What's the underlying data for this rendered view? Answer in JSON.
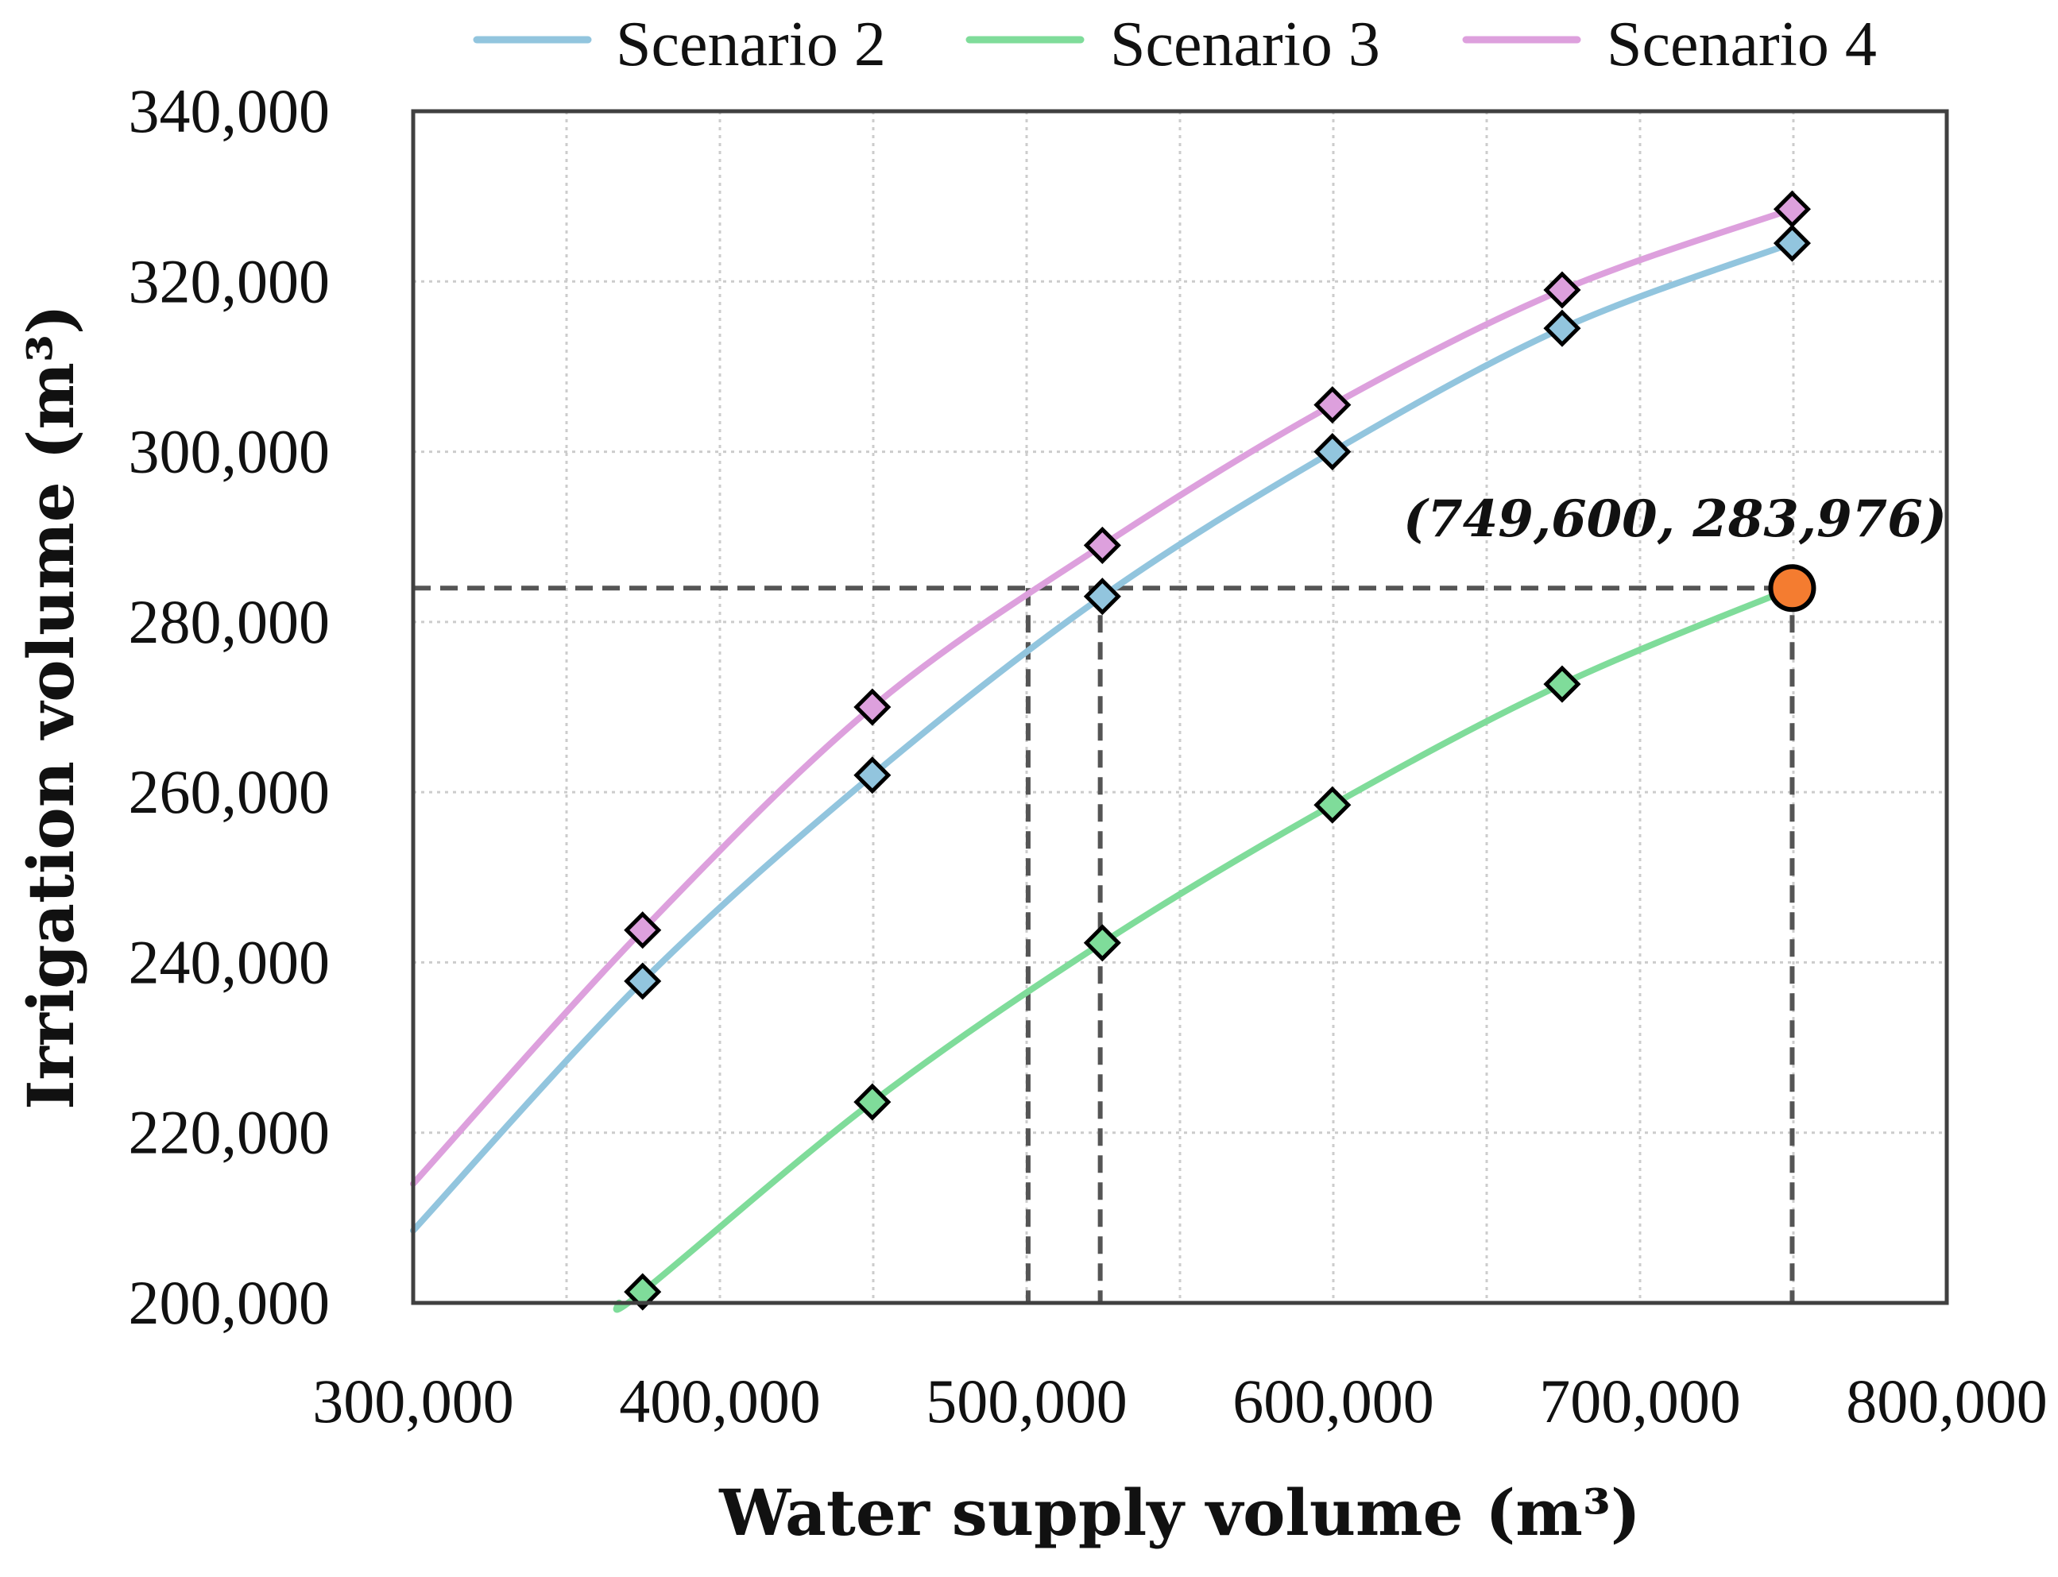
{
  "chart_data": {
    "type": "line",
    "title": "",
    "xlabel": "Water supply volume (m³)",
    "ylabel": "Irrigation volume (m³)",
    "xlim": [
      300000,
      800000
    ],
    "ylim": [
      200000,
      340000
    ],
    "x_ticks": [
      300000,
      400000,
      500000,
      600000,
      700000,
      800000
    ],
    "y_ticks": [
      200000,
      220000,
      240000,
      260000,
      280000,
      300000,
      320000,
      340000
    ],
    "x_tick_labels": [
      "300,000",
      "400,000",
      "500,000",
      "600,000",
      "700,000",
      "800,000"
    ],
    "y_tick_labels": [
      "200,000",
      "220,000",
      "240,000",
      "260,000",
      "280,000",
      "300,000",
      "320,000",
      "340,000"
    ],
    "grid": true,
    "legend_position": "top",
    "series": [
      {
        "name": "Scenario 2",
        "color": "#92c5de",
        "line_x": [
          300000,
          374800,
          449700,
          524700,
          599700,
          674600,
          749600
        ],
        "line_y": [
          208500,
          237800,
          262000,
          283000,
          300000,
          314500,
          324500
        ],
        "marker_x": [
          374800,
          449700,
          524700,
          599700,
          674600,
          749600
        ],
        "marker_y": [
          237800,
          262000,
          283000,
          300000,
          314500,
          324500
        ]
      },
      {
        "name": "Scenario 3",
        "color": "#7fdc9a",
        "line_x": [
          367000,
          374800,
          449700,
          524700,
          599700,
          674600,
          749600
        ],
        "line_y": [
          200000,
          201300,
          223600,
          242300,
          258500,
          272700,
          283976
        ],
        "marker_x": [
          374800,
          449700,
          524700,
          599700,
          674600
        ],
        "marker_y": [
          201300,
          223600,
          242300,
          258500,
          272700
        ]
      },
      {
        "name": "Scenario 4",
        "color": "#dda0dd",
        "line_x": [
          300000,
          374800,
          449700,
          524700,
          599700,
          674600,
          749600
        ],
        "line_y": [
          214000,
          243800,
          270000,
          289000,
          305500,
          319000,
          328500
        ],
        "marker_x": [
          374800,
          449700,
          524700,
          599700,
          674600,
          749600
        ],
        "marker_y": [
          243800,
          270000,
          289000,
          305500,
          319000,
          328500
        ]
      }
    ],
    "reference_lines": {
      "horizontal_y": 283976,
      "vertical_x": [
        749600,
        524000,
        500500
      ]
    },
    "highlight_point": {
      "x": 749600,
      "y": 283976,
      "color": "#f47c30",
      "label": "(749,600, 283,976)"
    }
  }
}
